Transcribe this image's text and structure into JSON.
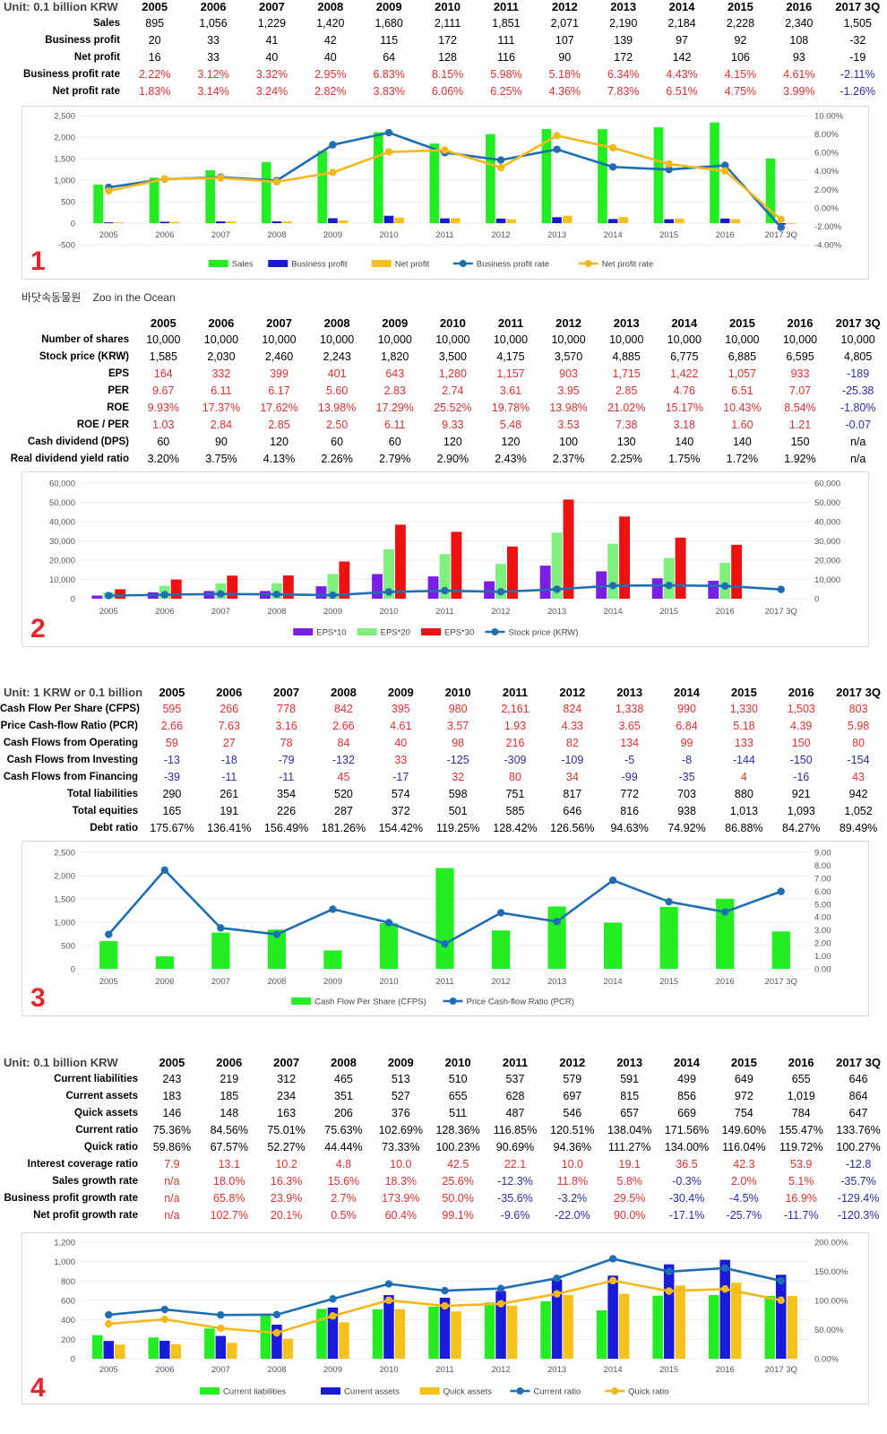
{
  "section1": {
    "unit": "Unit: 0.1 billion KRW",
    "years": [
      "2005",
      "2006",
      "2007",
      "2008",
      "2009",
      "2010",
      "2011",
      "2012",
      "2013",
      "2014",
      "2015",
      "2016",
      "2017 3Q"
    ],
    "rows": [
      {
        "label": "Sales",
        "values": [
          "895",
          "1,056",
          "1,229",
          "1,420",
          "1,680",
          "2,111",
          "1,851",
          "2,071",
          "2,190",
          "2,184",
          "2,228",
          "2,340",
          "1,505"
        ],
        "style": "plain"
      },
      {
        "label": "Business profit",
        "values": [
          "20",
          "33",
          "41",
          "42",
          "115",
          "172",
          "111",
          "107",
          "139",
          "97",
          "92",
          "108",
          "-32"
        ],
        "style": "plain"
      },
      {
        "label": "Net profit",
        "values": [
          "16",
          "33",
          "40",
          "40",
          "64",
          "128",
          "116",
          "90",
          "172",
          "142",
          "106",
          "93",
          "-19"
        ],
        "style": "plain"
      },
      {
        "label": "Business profit rate",
        "values": [
          "2.22%",
          "3.12%",
          "3.32%",
          "2.95%",
          "6.83%",
          "8.15%",
          "5.98%",
          "5.18%",
          "6.34%",
          "4.43%",
          "4.15%",
          "4.61%",
          "-2.11%"
        ],
        "style": "signed"
      },
      {
        "label": "Net profit rate",
        "values": [
          "1.83%",
          "3.14%",
          "3.24%",
          "2.82%",
          "3.83%",
          "6.06%",
          "6.25%",
          "4.36%",
          "7.83%",
          "6.51%",
          "4.75%",
          "3.99%",
          "-1.26%"
        ],
        "style": "signed"
      }
    ]
  },
  "chart1": {
    "type": "bar",
    "categories": [
      "2005",
      "2006",
      "2007",
      "2008",
      "2009",
      "2010",
      "2011",
      "2012",
      "2013",
      "2014",
      "2015",
      "2016",
      "2017 3Q"
    ],
    "left_axis": {
      "min": -500,
      "max": 2500,
      "ticks": [
        "-500",
        "0",
        "500",
        "1,000",
        "1,500",
        "2,000",
        "2,500"
      ]
    },
    "right_axis": {
      "min": -0.04,
      "max": 0.1,
      "ticks": [
        "-4.00%",
        "-2.00%",
        "0.00%",
        "2.00%",
        "4.00%",
        "6.00%",
        "8.00%",
        "10.00%"
      ]
    },
    "bars": [
      {
        "name": "Sales",
        "color": "#22ee22",
        "values": [
          895,
          1056,
          1229,
          1420,
          1680,
          2111,
          1851,
          2071,
          2190,
          2184,
          2228,
          2340,
          1505
        ]
      },
      {
        "name": "Business profit",
        "color": "#1a1acc",
        "values": [
          20,
          33,
          41,
          42,
          115,
          172,
          111,
          107,
          139,
          97,
          92,
          108,
          -32
        ]
      },
      {
        "name": "Net profit",
        "color": "#f5c21b",
        "values": [
          16,
          33,
          40,
          40,
          64,
          128,
          116,
          90,
          172,
          142,
          106,
          93,
          -19
        ]
      }
    ],
    "lines": [
      {
        "name": "Business profit rate",
        "color": "#1f6eb4",
        "values": [
          0.0222,
          0.0312,
          0.0332,
          0.0295,
          0.0683,
          0.0815,
          0.0598,
          0.0518,
          0.0634,
          0.0443,
          0.0415,
          0.0461,
          -0.0211
        ]
      },
      {
        "name": "Net profit rate",
        "color": "#f5b81b",
        "values": [
          0.0183,
          0.0314,
          0.0324,
          0.0282,
          0.0383,
          0.0606,
          0.0625,
          0.0436,
          0.0783,
          0.0651,
          0.0475,
          0.0399,
          -0.0126
        ]
      }
    ],
    "number": "1"
  },
  "caption": {
    "korean": "바닷속동물원",
    "english": "Zoo in the Ocean"
  },
  "section2": {
    "years": [
      "2005",
      "2006",
      "2007",
      "2008",
      "2009",
      "2010",
      "2011",
      "2012",
      "2013",
      "2014",
      "2015",
      "2016",
      "2017 3Q"
    ],
    "rows": [
      {
        "label": "Number of shares",
        "values": [
          "10,000",
          "10,000",
          "10,000",
          "10,000",
          "10,000",
          "10,000",
          "10,000",
          "10,000",
          "10,000",
          "10,000",
          "10,000",
          "10,000",
          "10,000"
        ],
        "style": "plain"
      },
      {
        "label": "Stock price (KRW)",
        "values": [
          "1,585",
          "2,030",
          "2,460",
          "2,243",
          "1,820",
          "3,500",
          "4,175",
          "3,570",
          "4,885",
          "6,775",
          "6,885",
          "6,595",
          "4,805"
        ],
        "style": "plain"
      },
      {
        "label": "EPS",
        "values": [
          "164",
          "332",
          "399",
          "401",
          "643",
          "1,280",
          "1,157",
          "903",
          "1,715",
          "1,422",
          "1,057",
          "933",
          "-189"
        ],
        "style": "signed"
      },
      {
        "label": "PER",
        "values": [
          "9.67",
          "6.11",
          "6.17",
          "5.60",
          "2.83",
          "2.74",
          "3.61",
          "3.95",
          "2.85",
          "4.76",
          "6.51",
          "7.07",
          "-25.38"
        ],
        "style": "signed"
      },
      {
        "label": "ROE",
        "values": [
          "9.93%",
          "17.37%",
          "17.62%",
          "13.98%",
          "17.29%",
          "25.52%",
          "19.78%",
          "13.98%",
          "21.02%",
          "15.17%",
          "10.43%",
          "8.54%",
          "-1.80%"
        ],
        "style": "signed"
      },
      {
        "label": "ROE / PER",
        "values": [
          "1.03",
          "2.84",
          "2.85",
          "2.50",
          "6.11",
          "9.33",
          "5.48",
          "3.53",
          "7.38",
          "3.18",
          "1.60",
          "1.21",
          "-0.07"
        ],
        "style": "signed"
      },
      {
        "label": "Cash dividend (DPS)",
        "values": [
          "60",
          "90",
          "120",
          "60",
          "60",
          "120",
          "120",
          "100",
          "130",
          "140",
          "140",
          "150",
          "n/a"
        ],
        "style": "plain"
      },
      {
        "label": "Real dividend yield ratio",
        "values": [
          "3.20%",
          "3.75%",
          "4.13%",
          "2.26%",
          "2.79%",
          "2.90%",
          "2.43%",
          "2.37%",
          "2.25%",
          "1.75%",
          "1.72%",
          "1.92%",
          "n/a"
        ],
        "style": "plain"
      }
    ]
  },
  "chart2": {
    "type": "bar",
    "categories": [
      "2005",
      "2006",
      "2007",
      "2008",
      "2009",
      "2010",
      "2011",
      "2012",
      "2013",
      "2014",
      "2015",
      "2016",
      "2017 3Q"
    ],
    "left_axis": {
      "min": 0,
      "max": 60000,
      "ticks": [
        "0",
        "10,000",
        "20,000",
        "30,000",
        "40,000",
        "50,000",
        "60,000"
      ]
    },
    "right_axis": {
      "min": 0,
      "max": 60000,
      "ticks": [
        "0",
        "10,000",
        "20,000",
        "30,000",
        "40,000",
        "50,000",
        "60,000"
      ]
    },
    "bars": [
      {
        "name": "EPS*10",
        "color": "#7a1ee6",
        "values": [
          1640,
          3320,
          3990,
          4010,
          6430,
          12800,
          11570,
          9030,
          17150,
          14220,
          10570,
          9330,
          null
        ]
      },
      {
        "name": "EPS*20",
        "color": "#7df07d",
        "values": [
          3280,
          6640,
          7980,
          8020,
          12860,
          25600,
          23140,
          18060,
          34300,
          28440,
          21140,
          18660,
          null
        ]
      },
      {
        "name": "EPS*30",
        "color": "#ee1111",
        "values": [
          4920,
          9960,
          11970,
          12030,
          19290,
          38400,
          34710,
          27090,
          51450,
          42660,
          31710,
          27990,
          null
        ]
      }
    ],
    "lines": [
      {
        "name": "Stock price (KRW)",
        "color": "#1f6eb4",
        "axis": "left",
        "values": [
          1585,
          2030,
          2460,
          2243,
          1820,
          3500,
          4175,
          3570,
          4885,
          6775,
          6885,
          6595,
          4805
        ]
      }
    ],
    "number": "2"
  },
  "section3": {
    "unit": "Unit: 1 KRW or 0.1 billion KRW",
    "years": [
      "2005",
      "2006",
      "2007",
      "2008",
      "2009",
      "2010",
      "2011",
      "2012",
      "2013",
      "2014",
      "2015",
      "2016",
      "2017 3Q"
    ],
    "rows": [
      {
        "label": "Cash Flow Per Share (CFPS)",
        "values": [
          "595",
          "266",
          "778",
          "842",
          "395",
          "980",
          "2,161",
          "824",
          "1,338",
          "990",
          "1,330",
          "1,503",
          "803"
        ],
        "style": "red"
      },
      {
        "label": "Price Cash-flow Ratio (PCR)",
        "values": [
          "2.66",
          "7.63",
          "3.16",
          "2.66",
          "4.61",
          "3.57",
          "1.93",
          "4.33",
          "3.65",
          "6.84",
          "5.18",
          "4.39",
          "5.98"
        ],
        "style": "red"
      },
      {
        "label": "Cash Flows from Operating",
        "values": [
          "59",
          "27",
          "78",
          "84",
          "40",
          "98",
          "216",
          "82",
          "134",
          "99",
          "133",
          "150",
          "80"
        ],
        "style": "red"
      },
      {
        "label": "Cash Flows from Investing",
        "values": [
          "-13",
          "-18",
          "-79",
          "-132",
          "33",
          "-125",
          "-309",
          "-109",
          "-5",
          "-8",
          "-144",
          "-150",
          "-154"
        ],
        "style": "signed"
      },
      {
        "label": "Cash Flows from Financing",
        "values": [
          "-39",
          "-11",
          "-11",
          "45",
          "-17",
          "32",
          "80",
          "34",
          "-99",
          "-35",
          "4",
          "-16",
          "43"
        ],
        "style": "signed"
      },
      {
        "label": "Total liabilities",
        "values": [
          "290",
          "261",
          "354",
          "520",
          "574",
          "598",
          "751",
          "817",
          "772",
          "703",
          "880",
          "921",
          "942"
        ],
        "style": "plain"
      },
      {
        "label": "Total equities",
        "values": [
          "165",
          "191",
          "226",
          "287",
          "372",
          "501",
          "585",
          "646",
          "816",
          "938",
          "1,013",
          "1,093",
          "1,052"
        ],
        "style": "plain"
      },
      {
        "label": "Debt ratio",
        "values": [
          "175.67%",
          "136.41%",
          "156.49%",
          "181.26%",
          "154.42%",
          "119.25%",
          "128.42%",
          "126.56%",
          "94.63%",
          "74.92%",
          "86.88%",
          "84.27%",
          "89.49%"
        ],
        "style": "plain"
      }
    ]
  },
  "chart3": {
    "type": "bar",
    "categories": [
      "2005",
      "2006",
      "2007",
      "2008",
      "2009",
      "2010",
      "2011",
      "2012",
      "2013",
      "2014",
      "2015",
      "2016",
      "2017 3Q"
    ],
    "left_axis": {
      "min": 0,
      "max": 2500,
      "ticks": [
        "0",
        "500",
        "1,000",
        "1,500",
        "2,000",
        "2,500"
      ]
    },
    "right_axis": {
      "min": 0,
      "max": 9,
      "ticks": [
        "0.00",
        "1.00",
        "2.00",
        "3.00",
        "4.00",
        "5.00",
        "6.00",
        "7.00",
        "8.00",
        "9.00"
      ]
    },
    "bars": [
      {
        "name": "Cash Flow Per Share (CFPS)",
        "color": "#22ee22",
        "values": [
          595,
          266,
          778,
          842,
          395,
          980,
          2161,
          824,
          1338,
          990,
          1330,
          1503,
          803
        ]
      }
    ],
    "lines": [
      {
        "name": "Price Cash-flow Ratio (PCR)",
        "color": "#1f6eb4",
        "values": [
          2.66,
          7.63,
          3.16,
          2.66,
          4.61,
          3.57,
          1.93,
          4.33,
          3.65,
          6.84,
          5.18,
          4.39,
          5.98
        ]
      }
    ],
    "number": "3"
  },
  "section4": {
    "unit": "Unit: 0.1 billion KRW",
    "years": [
      "2005",
      "2006",
      "2007",
      "2008",
      "2009",
      "2010",
      "2011",
      "2012",
      "2013",
      "2014",
      "2015",
      "2016",
      "2017 3Q"
    ],
    "rows": [
      {
        "label": "Current liabilities",
        "values": [
          "243",
          "219",
          "312",
          "465",
          "513",
          "510",
          "537",
          "579",
          "591",
          "499",
          "649",
          "655",
          "646"
        ],
        "style": "plain"
      },
      {
        "label": "Current assets",
        "values": [
          "183",
          "185",
          "234",
          "351",
          "527",
          "655",
          "628",
          "697",
          "815",
          "856",
          "972",
          "1,019",
          "864"
        ],
        "style": "plain"
      },
      {
        "label": "Quick assets",
        "values": [
          "146",
          "148",
          "163",
          "206",
          "376",
          "511",
          "487",
          "546",
          "657",
          "669",
          "754",
          "784",
          "647"
        ],
        "style": "plain"
      },
      {
        "label": "Current ratio",
        "values": [
          "75.36%",
          "84.56%",
          "75.01%",
          "75.63%",
          "102.69%",
          "128.36%",
          "116.85%",
          "120.51%",
          "138.04%",
          "171.56%",
          "149.60%",
          "155.47%",
          "133.76%"
        ],
        "style": "plain"
      },
      {
        "label": "Quick ratio",
        "values": [
          "59.86%",
          "67.57%",
          "52.27%",
          "44.44%",
          "73.33%",
          "100.23%",
          "90.69%",
          "94.36%",
          "111.27%",
          "134.00%",
          "116.04%",
          "119.72%",
          "100.27%"
        ],
        "style": "plain"
      },
      {
        "label": "Interest coverage ratio",
        "values": [
          "7.9",
          "13.1",
          "10.2",
          "4.8",
          "10.0",
          "42.5",
          "22.1",
          "10.0",
          "19.1",
          "36.5",
          "42.3",
          "53.9",
          "-12.8"
        ],
        "style": "signed"
      },
      {
        "label": "Sales growth rate",
        "values": [
          "n/a",
          "18.0%",
          "16.3%",
          "15.6%",
          "18.3%",
          "25.6%",
          "-12.3%",
          "11.8%",
          "5.8%",
          "-0.3%",
          "2.0%",
          "5.1%",
          "-35.7%"
        ],
        "style": "signed"
      },
      {
        "label": "Business profit growth rate",
        "values": [
          "n/a",
          "65.8%",
          "23.9%",
          "2.7%",
          "173.9%",
          "50.0%",
          "-35.6%",
          "-3.2%",
          "29.5%",
          "-30.4%",
          "-4.5%",
          "16.9%",
          "-129.4%"
        ],
        "style": "signed"
      },
      {
        "label": "Net profit growth rate",
        "values": [
          "n/a",
          "102.7%",
          "20.1%",
          "0.5%",
          "60.4%",
          "99.1%",
          "-9.6%",
          "-22.0%",
          "90.0%",
          "-17.1%",
          "-25.7%",
          "-11.7%",
          "-120.3%"
        ],
        "style": "signed"
      }
    ]
  },
  "chart4": {
    "type": "bar",
    "categories": [
      "2005",
      "2006",
      "2007",
      "2008",
      "2009",
      "2010",
      "2011",
      "2012",
      "2013",
      "2014",
      "2015",
      "2016",
      "2017 3Q"
    ],
    "left_axis": {
      "min": 0,
      "max": 1200,
      "ticks": [
        "0",
        "200",
        "400",
        "600",
        "800",
        "1,000",
        "1,200"
      ]
    },
    "right_axis": {
      "min": 0,
      "max": 2,
      "ticks": [
        "0.00%",
        "50.00%",
        "100.00%",
        "150.00%",
        "200.00%"
      ]
    },
    "bars": [
      {
        "name": "Current liabilities",
        "color": "#22ee22",
        "values": [
          243,
          219,
          312,
          465,
          513,
          510,
          537,
          579,
          591,
          499,
          649,
          655,
          646
        ]
      },
      {
        "name": "Current assets",
        "color": "#1a1add",
        "values": [
          183,
          185,
          234,
          351,
          527,
          655,
          628,
          697,
          815,
          856,
          972,
          1019,
          864
        ]
      },
      {
        "name": "Quick assets",
        "color": "#f5c21b",
        "values": [
          146,
          148,
          163,
          206,
          376,
          511,
          487,
          546,
          657,
          669,
          754,
          784,
          647
        ]
      }
    ],
    "lines": [
      {
        "name": "Current ratio",
        "color": "#1f6eb4",
        "values": [
          0.7536,
          0.8456,
          0.7501,
          0.7563,
          1.0269,
          1.2836,
          1.1685,
          1.2051,
          1.3804,
          1.7156,
          1.496,
          1.5547,
          1.3376
        ]
      },
      {
        "name": "Quick ratio",
        "color": "#f5b81b",
        "values": [
          0.5986,
          0.6757,
          0.5227,
          0.4444,
          0.7333,
          1.0023,
          0.9069,
          0.9436,
          1.1127,
          1.34,
          1.1604,
          1.1972,
          1.0027
        ]
      }
    ],
    "number": "4"
  },
  "colors": {
    "red": "#e03030",
    "blue": "#2c2ca8",
    "text": "#000000"
  }
}
